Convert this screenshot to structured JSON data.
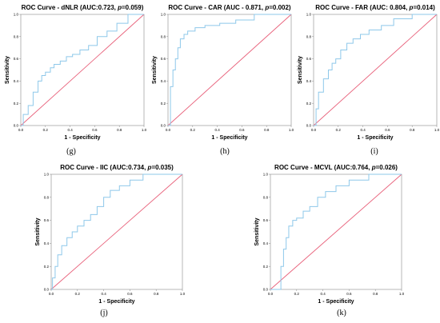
{
  "chart_data": [
    {
      "type": "line",
      "title": "ROC Curve - dNLR (AUC:0.723, p=0.059)",
      "title_prefix": "ROC Curve - dNLR (AUC:0.723, ",
      "title_p": "p",
      "title_suffix": "=0.059)",
      "xlabel": "1 - Specificity",
      "ylabel": "Sensitivity",
      "xlim": [
        0,
        1
      ],
      "ylim": [
        0,
        1
      ],
      "xticks": [
        "0.0",
        "0.2",
        "0.4",
        "0.6",
        "0.8",
        "1.0"
      ],
      "yticks": [
        "0.0",
        "0.2",
        "0.4",
        "0.6",
        "0.8",
        "1.0"
      ],
      "sublabel": "(g)",
      "series": [
        {
          "x": [
            0,
            0.02,
            0.02,
            0.06,
            0.06,
            0.1,
            0.1,
            0.14,
            0.14,
            0.17,
            0.17,
            0.2,
            0.2,
            0.24,
            0.24,
            0.27,
            0.27,
            0.32,
            0.32,
            0.37,
            0.37,
            0.42,
            0.42,
            0.48,
            0.48,
            0.55,
            0.55,
            0.62,
            0.62,
            0.7,
            0.7,
            0.78,
            0.78,
            0.87,
            0.87,
            1.0
          ],
          "y": [
            0,
            0,
            0.1,
            0.1,
            0.18,
            0.18,
            0.3,
            0.3,
            0.4,
            0.4,
            0.45,
            0.45,
            0.48,
            0.48,
            0.52,
            0.52,
            0.55,
            0.55,
            0.58,
            0.58,
            0.62,
            0.62,
            0.64,
            0.64,
            0.68,
            0.68,
            0.72,
            0.72,
            0.8,
            0.8,
            0.85,
            0.85,
            0.92,
            0.92,
            1.0,
            1.0
          ]
        },
        {
          "x": [
            0,
            1
          ],
          "y": [
            0,
            1
          ]
        }
      ]
    },
    {
      "type": "line",
      "title": "ROC Curve - CAR (AUC - 0.871, p=0.002)",
      "title_prefix": "ROC Curve - CAR (AUC - 0.871, ",
      "title_p": "p",
      "title_suffix": "=0.002)",
      "xlabel": "1 - Specificity",
      "ylabel": "Sensitivity",
      "xlim": [
        0,
        1
      ],
      "ylim": [
        0,
        1
      ],
      "xticks": [
        "0.0",
        "0.2",
        "0.4",
        "0.6",
        "0.8",
        "1.0"
      ],
      "yticks": [
        "0.0",
        "0.2",
        "0.4",
        "0.6",
        "0.8",
        "1.0"
      ],
      "sublabel": "(h)",
      "series": [
        {
          "x": [
            0,
            0.02,
            0.02,
            0.04,
            0.04,
            0.06,
            0.06,
            0.08,
            0.08,
            0.1,
            0.1,
            0.13,
            0.13,
            0.16,
            0.16,
            0.22,
            0.22,
            0.3,
            0.3,
            0.42,
            0.42,
            0.55,
            0.55,
            0.7,
            0.7,
            1.0
          ],
          "y": [
            0,
            0,
            0.35,
            0.35,
            0.5,
            0.5,
            0.6,
            0.6,
            0.7,
            0.7,
            0.78,
            0.78,
            0.82,
            0.82,
            0.85,
            0.85,
            0.88,
            0.88,
            0.9,
            0.9,
            0.92,
            0.92,
            0.95,
            0.95,
            1.0,
            1.0
          ]
        },
        {
          "x": [
            0,
            1
          ],
          "y": [
            0,
            1
          ]
        }
      ]
    },
    {
      "type": "line",
      "title": "ROC Curve - FAR (AUC: 0.804, p=0.014)",
      "title_prefix": "ROC Curve - FAR (AUC: 0.804, ",
      "title_p": "p",
      "title_suffix": "=0.014)",
      "xlabel": "1 - Specificity",
      "ylabel": "Sensitivity",
      "xlim": [
        0,
        1
      ],
      "ylim": [
        0,
        1
      ],
      "xticks": [
        "0.0",
        "0.2",
        "0.4",
        "0.6",
        "0.8",
        "1.0"
      ],
      "yticks": [
        "0.0",
        "0.2",
        "0.4",
        "0.6",
        "0.8",
        "1.0"
      ],
      "sublabel": "(i)",
      "series": [
        {
          "x": [
            0,
            0.02,
            0.02,
            0.04,
            0.04,
            0.08,
            0.08,
            0.12,
            0.12,
            0.15,
            0.15,
            0.18,
            0.18,
            0.22,
            0.22,
            0.27,
            0.27,
            0.32,
            0.32,
            0.38,
            0.38,
            0.45,
            0.45,
            0.55,
            0.55,
            0.65,
            0.65,
            0.8,
            0.8,
            1.0
          ],
          "y": [
            0,
            0,
            0.15,
            0.15,
            0.3,
            0.3,
            0.42,
            0.42,
            0.5,
            0.5,
            0.56,
            0.56,
            0.6,
            0.6,
            0.68,
            0.68,
            0.74,
            0.74,
            0.78,
            0.78,
            0.82,
            0.82,
            0.86,
            0.86,
            0.9,
            0.9,
            0.96,
            0.96,
            1.0,
            1.0
          ]
        },
        {
          "x": [
            0,
            1
          ],
          "y": [
            0,
            1
          ]
        }
      ]
    },
    {
      "type": "line",
      "title": "ROC Curve - IIC (AUC:0.734, p=0.035)",
      "title_prefix": "ROC Curve - IIC (AUC:0.734, ",
      "title_p": "p",
      "title_suffix": "=0.035)",
      "xlabel": "1 - Specificity",
      "ylabel": "Sensitivity",
      "xlim": [
        0,
        1
      ],
      "ylim": [
        0,
        1
      ],
      "xticks": [
        "0.0",
        "0.2",
        "0.4",
        "0.6",
        "0.8",
        "1.0"
      ],
      "yticks": [
        "0.0",
        "0.2",
        "0.4",
        "0.6",
        "0.8",
        "1.0"
      ],
      "sublabel": "(j)",
      "series": [
        {
          "x": [
            0,
            0.01,
            0.01,
            0.03,
            0.03,
            0.05,
            0.05,
            0.08,
            0.08,
            0.12,
            0.12,
            0.16,
            0.16,
            0.2,
            0.2,
            0.25,
            0.25,
            0.3,
            0.3,
            0.35,
            0.35,
            0.4,
            0.4,
            0.45,
            0.45,
            0.52,
            0.52,
            0.6,
            0.6,
            0.7,
            0.7,
            1.0
          ],
          "y": [
            0,
            0,
            0.1,
            0.1,
            0.2,
            0.2,
            0.3,
            0.3,
            0.38,
            0.38,
            0.45,
            0.45,
            0.5,
            0.5,
            0.55,
            0.55,
            0.6,
            0.6,
            0.65,
            0.65,
            0.72,
            0.72,
            0.8,
            0.8,
            0.86,
            0.86,
            0.9,
            0.9,
            0.95,
            0.95,
            1.0,
            1.0
          ]
        },
        {
          "x": [
            0,
            1
          ],
          "y": [
            0,
            1
          ]
        }
      ]
    },
    {
      "type": "line",
      "title": "ROC Curve - MCVL (AUC:0.764, p=0.026)",
      "title_prefix": "ROC Curve - MCVL (AUC:0.764, ",
      "title_p": "p",
      "title_suffix": "=0.026)",
      "xlabel": "1 - Specificity",
      "ylabel": "Sensitivity",
      "xlim": [
        0,
        1
      ],
      "ylim": [
        0,
        1
      ],
      "xticks": [
        "0.0",
        "0.2",
        "0.4",
        "0.6",
        "0.8",
        "1.0"
      ],
      "yticks": [
        "0.0",
        "0.2",
        "0.4",
        "0.6",
        "0.8",
        "1.0"
      ],
      "sublabel": "(k)",
      "series": [
        {
          "x": [
            0,
            0.08,
            0.08,
            0.1,
            0.1,
            0.12,
            0.12,
            0.14,
            0.14,
            0.17,
            0.17,
            0.2,
            0.2,
            0.25,
            0.25,
            0.3,
            0.3,
            0.36,
            0.36,
            0.42,
            0.42,
            0.5,
            0.5,
            0.6,
            0.6,
            0.75,
            0.75,
            1.0
          ],
          "y": [
            0,
            0,
            0.2,
            0.2,
            0.35,
            0.35,
            0.45,
            0.45,
            0.55,
            0.55,
            0.6,
            0.6,
            0.62,
            0.62,
            0.68,
            0.68,
            0.72,
            0.72,
            0.8,
            0.8,
            0.85,
            0.85,
            0.9,
            0.9,
            0.95,
            0.95,
            1.0,
            1.0
          ]
        },
        {
          "x": [
            0,
            1
          ],
          "y": [
            0,
            1
          ]
        }
      ]
    }
  ],
  "colors": {
    "roc_curve": "#8ec8ea",
    "reference_line": "#e8607a",
    "frame": "#888888"
  }
}
